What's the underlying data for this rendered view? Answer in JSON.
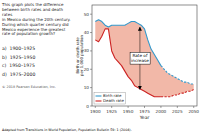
{
  "chart_data": {
    "type": "line",
    "title": "This graph plots the difference between birth rates and death rates\nin Mexico during the 20th century. During which quarter century did\nMexico experience the greatest rate of population growth?",
    "options": [
      "a)  1900–1925",
      "b)  1925–1950",
      "c)  1950–1975",
      "d)  1975–2000"
    ],
    "copyright": "© 2018 Pearson Education, Inc.",
    "footnote": "Adapted from Transitions in World Population, Population Bulletin 59: 1 (2004).",
    "xlabel": "Year",
    "ylabel": "Birth or death rate\nper 1,000 population",
    "xlim": [
      1895,
      2055
    ],
    "ylim": [
      0,
      55
    ],
    "xticks": [
      1900,
      1925,
      1950,
      1975,
      2000,
      2025,
      2050
    ],
    "yticks": [
      0,
      10,
      20,
      30,
      40,
      50
    ],
    "x": [
      1900,
      1905,
      1910,
      1915,
      1920,
      1925,
      1930,
      1935,
      1940,
      1945,
      1950,
      1955,
      1960,
      1965,
      1970,
      1975,
      1980,
      1985,
      1990,
      1995,
      2000,
      2005,
      2010,
      2015,
      2020,
      2025,
      2030,
      2035,
      2040,
      2045,
      2050
    ],
    "series": [
      {
        "name": "Birth rate",
        "color": "#3399cc",
        "values": [
          46,
          47,
          46,
          44,
          43,
          44,
          44,
          44,
          44,
          44,
          45,
          46,
          46,
          45,
          44,
          42,
          36,
          31,
          28,
          25,
          22,
          20,
          18,
          17,
          16,
          15,
          14,
          13,
          13,
          12,
          12
        ]
      },
      {
        "name": "Death rate",
        "color": "#cc2222",
        "values": [
          36,
          35,
          38,
          42,
          42,
          30,
          26,
          24,
          22,
          19,
          16,
          14,
          11,
          10,
          9,
          8,
          7,
          6,
          5,
          5,
          5,
          5,
          5,
          5,
          6,
          6,
          7,
          7,
          8,
          8,
          9
        ]
      }
    ],
    "projected_from": 2000,
    "fill_between": {
      "color": "#f2b8a8"
    },
    "annotations": [
      {
        "text": "Rate of\nincrease",
        "x": 1968,
        "y": 26,
        "arrow_to": [
          43,
          9
        ]
      }
    ],
    "legend": "lower left"
  }
}
